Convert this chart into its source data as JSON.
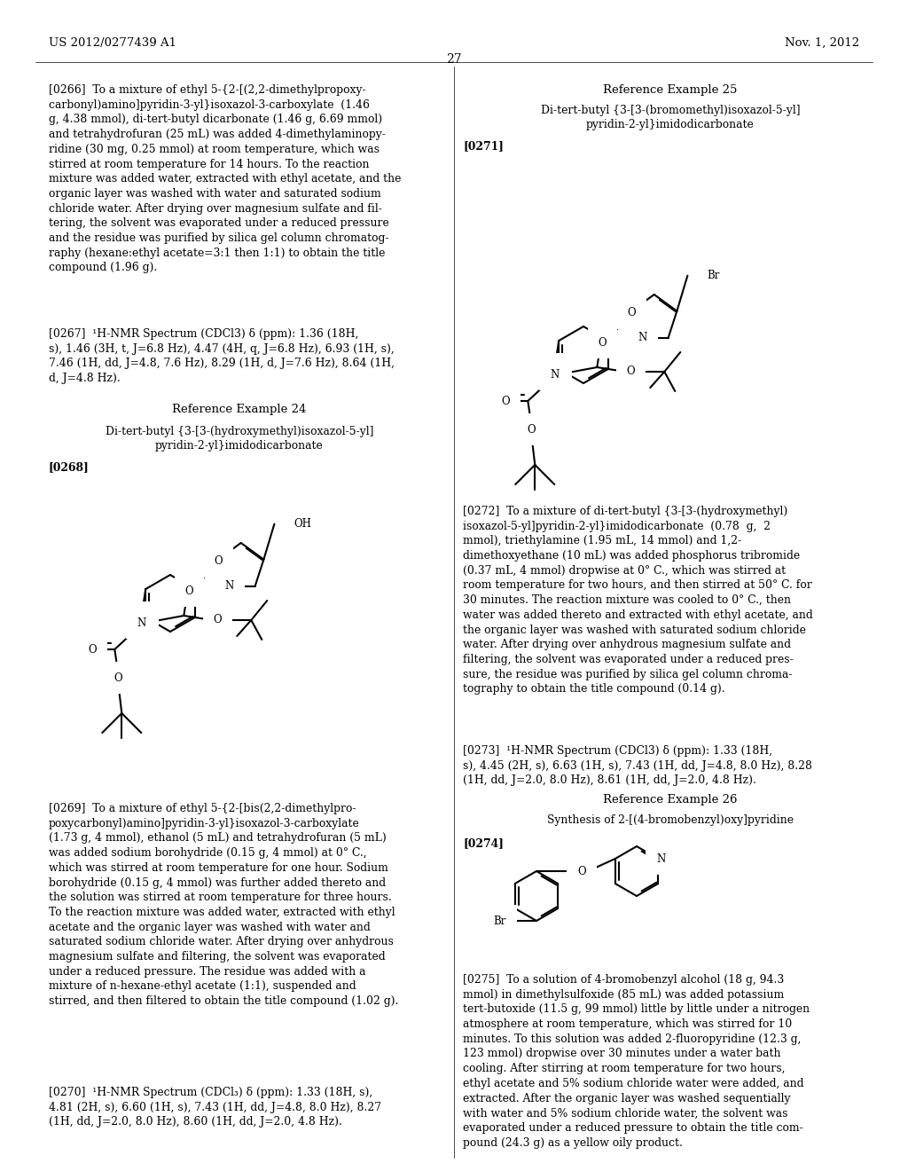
{
  "page_number": "27",
  "header_left": "US 2012/0277439 A1",
  "header_right": "Nov. 1, 2012",
  "background_color": "#ffffff",
  "text_color": "#000000"
}
